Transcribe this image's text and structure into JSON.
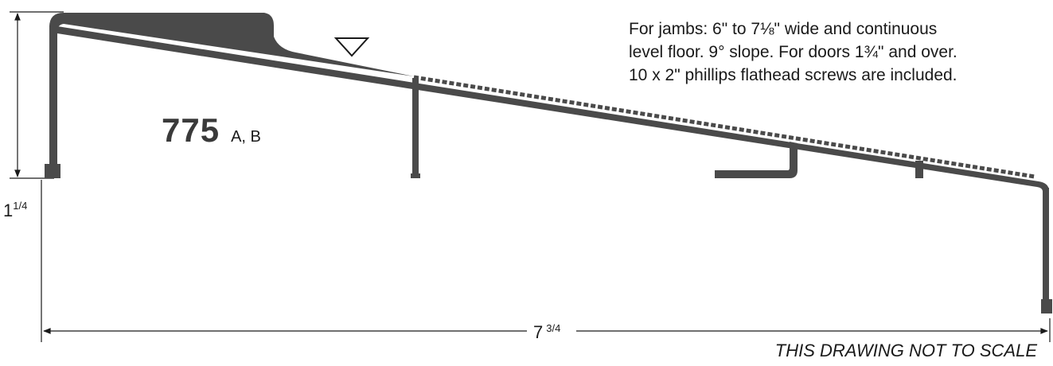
{
  "notes": {
    "line1": "For jambs: 6\" to 7⅛\" wide and continuous",
    "line2": "level floor. 9° slope. For doors 1¾\" and over.",
    "line3": "10 x 2\" phillips flathead screws are included."
  },
  "model": {
    "number": "775",
    "variants": "A, B"
  },
  "dimensions": {
    "height_whole": "1",
    "height_fraction": "1/4",
    "width_whole": "7",
    "width_fraction": "3/4"
  },
  "disclaimer": "THIS DRAWING NOT TO SCALE",
  "colors": {
    "profile": "#4a4a4a",
    "line": "#1a1a1a"
  }
}
